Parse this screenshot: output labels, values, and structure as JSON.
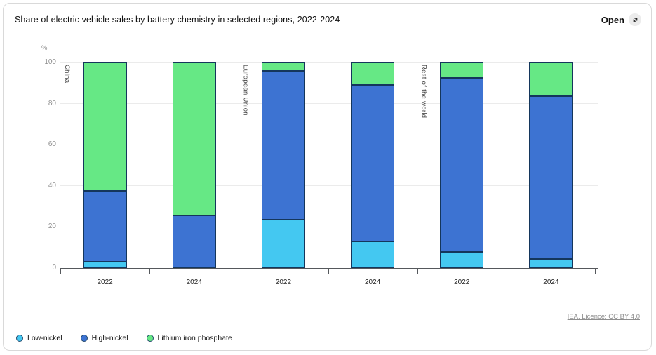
{
  "header": {
    "title": "Share of electric vehicle sales by battery chemistry in selected regions, 2022-2024",
    "open_label": "Open"
  },
  "chart_data": {
    "type": "bar",
    "stacked": true,
    "title": "Share of electric vehicle sales by battery chemistry in selected regions, 2022-2024",
    "unit": "%",
    "ylim": [
      0,
      100
    ],
    "y_ticks": [
      0,
      20,
      40,
      60,
      80,
      100
    ],
    "grid": "horizontal",
    "legend_position": "bottom",
    "x_categories": [
      "2022",
      "2024",
      "2022",
      "2024",
      "2022",
      "2024"
    ],
    "region_groups": [
      {
        "label": "China",
        "start_slot": 0
      },
      {
        "label": "European Union",
        "start_slot": 2
      },
      {
        "label": "Rest of the world",
        "start_slot": 4
      }
    ],
    "series": [
      {
        "name": "Low-nickel",
        "color": "#44c8f1",
        "values": [
          3,
          0.5,
          23.5,
          13,
          8,
          4.5
        ]
      },
      {
        "name": "High-nickel",
        "color": "#3d73d2",
        "values": [
          34.5,
          25,
          72.5,
          76,
          84.5,
          79
        ]
      },
      {
        "name": "Lithium iron phosphate",
        "color": "#66e885",
        "values": [
          62.5,
          74.5,
          4,
          11,
          7.5,
          16.5
        ]
      }
    ]
  },
  "attribution": {
    "label": "IEA. Licence: CC BY 4.0"
  },
  "icons": {
    "open_icon": "expand-diagonal-arrow"
  }
}
